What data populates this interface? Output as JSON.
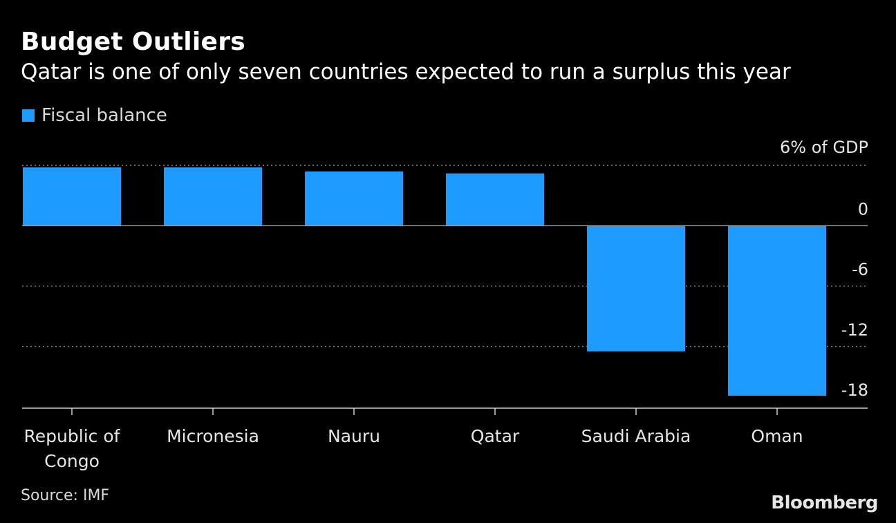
{
  "title": "Budget Outliers",
  "subtitle": "Qatar is one of only seven countries expected to run a surplus this year",
  "legend": {
    "label": "Fiscal balance",
    "color": "#1e9bff"
  },
  "source": "Source: IMF",
  "brand": "Bloomberg",
  "colors": {
    "background": "#000000",
    "bar": "#1e9bff",
    "grid": "#8c8c8c"
  },
  "chart_data": {
    "type": "bar",
    "categories": [
      "Republic of Congo",
      "Micronesia",
      "Nauru",
      "Qatar",
      "Saudi Arabia",
      "Oman"
    ],
    "category_lines": [
      [
        "Republic of",
        "Congo"
      ],
      [
        "Micronesia"
      ],
      [
        "Nauru"
      ],
      [
        "Qatar"
      ],
      [
        "Saudi Arabia"
      ],
      [
        "Oman"
      ]
    ],
    "series": [
      {
        "name": "Fiscal balance",
        "values": [
          5.8,
          5.8,
          5.4,
          5.2,
          -12.5,
          -16.9
        ]
      }
    ],
    "ylim": [
      -18,
      6
    ],
    "yticks": [
      6,
      0,
      -6,
      -12,
      -18
    ],
    "ytick_labels": [
      "6% of GDP",
      "0",
      "-6",
      "-12",
      "-18"
    ],
    "grid": "dotted horizontal",
    "legend_position": "top-left"
  }
}
